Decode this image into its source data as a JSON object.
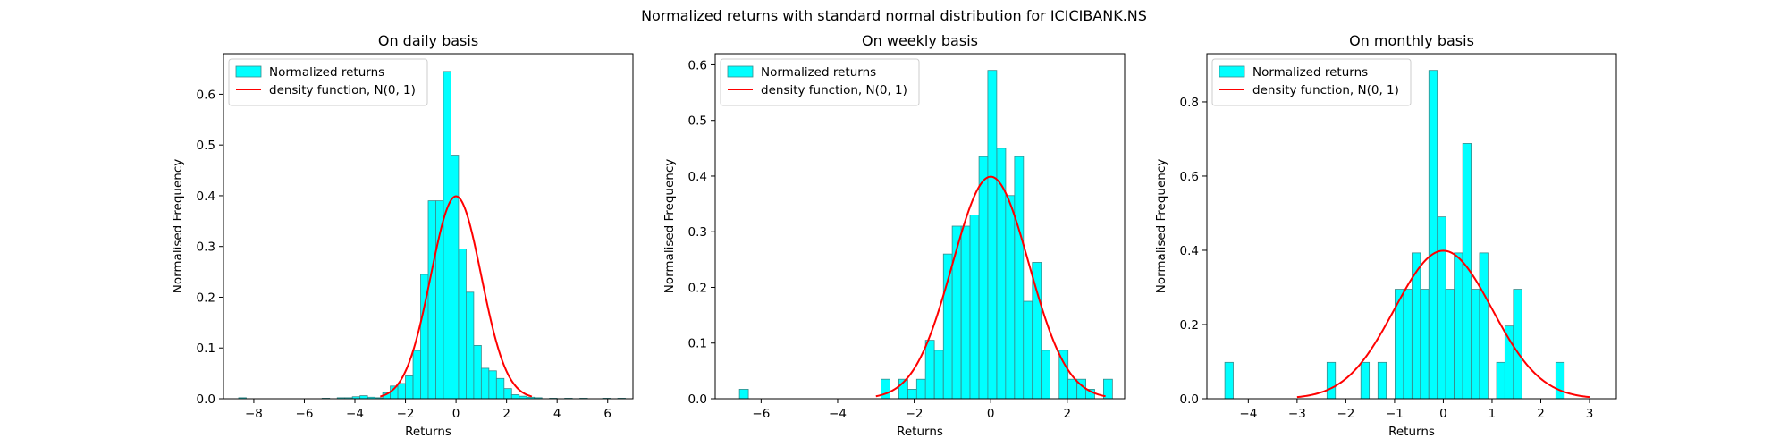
{
  "suptitle": "Normalized returns with standard normal distribution for ICICIBANK.NS",
  "colors": {
    "bar_fill": "#00ffff",
    "bar_edge": "#3a8a8a",
    "curve": "#ff0000",
    "axes": "#000000"
  },
  "legend": {
    "hist_label": "Normalized returns",
    "curve_label": "density function, N(0, 1)",
    "placement": "upper-left"
  },
  "chart_data": [
    {
      "type": "bar",
      "title": "On daily basis",
      "xlabel": "Returns",
      "ylabel": "Normalised Frequency",
      "xlim": [
        -9.2,
        7.0
      ],
      "ylim": [
        0,
        0.68
      ],
      "xticks": [
        -8,
        -6,
        -4,
        -2,
        0,
        2,
        4,
        6
      ],
      "yticks": [
        0.0,
        0.1,
        0.2,
        0.3,
        0.4,
        0.5,
        0.6
      ],
      "bin_width": 0.3,
      "bins": [
        {
          "x": -8.45,
          "y": 0.002
        },
        {
          "x": -5.15,
          "y": 0.001
        },
        {
          "x": -4.55,
          "y": 0.002
        },
        {
          "x": -4.25,
          "y": 0.002
        },
        {
          "x": -3.95,
          "y": 0.004
        },
        {
          "x": -3.65,
          "y": 0.006
        },
        {
          "x": -3.35,
          "y": 0.003
        },
        {
          "x": -3.05,
          "y": 0.002
        },
        {
          "x": -2.75,
          "y": 0.012
        },
        {
          "x": -2.45,
          "y": 0.025
        },
        {
          "x": -2.15,
          "y": 0.03
        },
        {
          "x": -1.85,
          "y": 0.045
        },
        {
          "x": -1.55,
          "y": 0.095
        },
        {
          "x": -1.25,
          "y": 0.245
        },
        {
          "x": -0.95,
          "y": 0.39
        },
        {
          "x": -0.65,
          "y": 0.39
        },
        {
          "x": -0.35,
          "y": 0.645
        },
        {
          "x": -0.05,
          "y": 0.48
        },
        {
          "x": 0.25,
          "y": 0.295
        },
        {
          "x": 0.55,
          "y": 0.21
        },
        {
          "x": 0.85,
          "y": 0.105
        },
        {
          "x": 1.15,
          "y": 0.06
        },
        {
          "x": 1.45,
          "y": 0.055
        },
        {
          "x": 1.75,
          "y": 0.04
        },
        {
          "x": 2.05,
          "y": 0.02
        },
        {
          "x": 2.35,
          "y": 0.008
        },
        {
          "x": 2.65,
          "y": 0.005
        },
        {
          "x": 2.95,
          "y": 0.003
        },
        {
          "x": 3.25,
          "y": 0.002
        },
        {
          "x": 3.85,
          "y": 0.001
        },
        {
          "x": 4.45,
          "y": 0.001
        },
        {
          "x": 5.05,
          "y": 0.001
        },
        {
          "x": 5.95,
          "y": 0.001
        },
        {
          "x": 6.55,
          "y": 0.001
        }
      ],
      "curve_range": [
        -3,
        3
      ]
    },
    {
      "type": "bar",
      "title": "On weekly basis",
      "xlabel": "Returns",
      "ylabel": "Normalised Frequency",
      "xlim": [
        -7.2,
        3.5
      ],
      "ylim": [
        0,
        0.62
      ],
      "xticks": [
        -6,
        -4,
        -2,
        0,
        2
      ],
      "yticks": [
        0.0,
        0.1,
        0.2,
        0.3,
        0.4,
        0.5,
        0.6
      ],
      "bin_width": 0.2325,
      "bins": [
        {
          "x": -6.45,
          "y": 0.017
        },
        {
          "x": -2.75,
          "y": 0.035
        },
        {
          "x": -2.285,
          "y": 0.035
        },
        {
          "x": -2.05,
          "y": 0.017
        },
        {
          "x": -1.82,
          "y": 0.035
        },
        {
          "x": -1.59,
          "y": 0.105
        },
        {
          "x": -1.355,
          "y": 0.087
        },
        {
          "x": -1.12,
          "y": 0.26
        },
        {
          "x": -0.89,
          "y": 0.31
        },
        {
          "x": -0.655,
          "y": 0.31
        },
        {
          "x": -0.425,
          "y": 0.33
        },
        {
          "x": -0.19,
          "y": 0.435
        },
        {
          "x": 0.04,
          "y": 0.59
        },
        {
          "x": 0.275,
          "y": 0.45
        },
        {
          "x": 0.505,
          "y": 0.365
        },
        {
          "x": 0.74,
          "y": 0.435
        },
        {
          "x": 0.97,
          "y": 0.175
        },
        {
          "x": 1.205,
          "y": 0.245
        },
        {
          "x": 1.435,
          "y": 0.087
        },
        {
          "x": 1.905,
          "y": 0.087
        },
        {
          "x": 2.135,
          "y": 0.035
        },
        {
          "x": 2.37,
          "y": 0.035
        },
        {
          "x": 2.6,
          "y": 0.017
        },
        {
          "x": 3.065,
          "y": 0.035
        }
      ],
      "curve_range": [
        -3,
        3
      ]
    },
    {
      "type": "bar",
      "title": "On monthly basis",
      "xlabel": "Returns",
      "ylabel": "Normalised Frequency",
      "xlim": [
        -4.85,
        3.55
      ],
      "ylim": [
        0,
        0.93
      ],
      "xticks": [
        -4,
        -3,
        -2,
        -1,
        0,
        1,
        2,
        3
      ],
      "yticks": [
        0.0,
        0.2,
        0.4,
        0.6,
        0.8
      ],
      "bin_width": 0.1725,
      "bins": [
        {
          "x": -4.395,
          "y": 0.098
        },
        {
          "x": -2.3,
          "y": 0.098
        },
        {
          "x": -1.605,
          "y": 0.098
        },
        {
          "x": -1.255,
          "y": 0.098
        },
        {
          "x": -0.905,
          "y": 0.295
        },
        {
          "x": -0.73,
          "y": 0.295
        },
        {
          "x": -0.555,
          "y": 0.393
        },
        {
          "x": -0.385,
          "y": 0.295
        },
        {
          "x": -0.21,
          "y": 0.885
        },
        {
          "x": -0.035,
          "y": 0.49
        },
        {
          "x": 0.135,
          "y": 0.295
        },
        {
          "x": 0.31,
          "y": 0.393
        },
        {
          "x": 0.485,
          "y": 0.688
        },
        {
          "x": 0.655,
          "y": 0.295
        },
        {
          "x": 0.83,
          "y": 0.393
        },
        {
          "x": 1.18,
          "y": 0.098
        },
        {
          "x": 1.35,
          "y": 0.196
        },
        {
          "x": 1.525,
          "y": 0.295
        },
        {
          "x": 2.395,
          "y": 0.098
        }
      ],
      "curve_range": [
        -3,
        3
      ]
    }
  ]
}
